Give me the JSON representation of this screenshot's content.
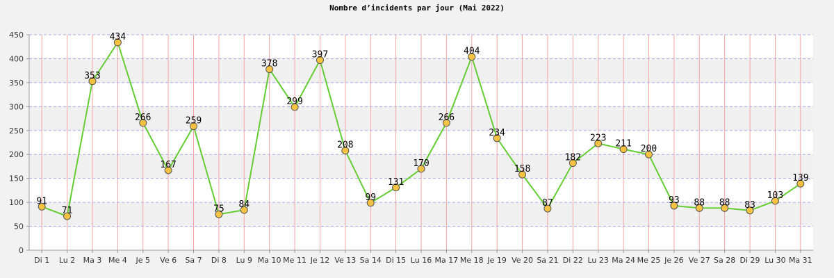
{
  "chart_data": {
    "type": "line",
    "title": "Nombre d’incidents par jour (Mai 2022)",
    "xlabel": "",
    "ylabel": "",
    "categories": [
      "Di 1",
      "Lu 2",
      "Ma 3",
      "Me 4",
      "Je 5",
      "Ve 6",
      "Sa 7",
      "Di 8",
      "Lu 9",
      "Ma 10",
      "Me 11",
      "Je 12",
      "Ve 13",
      "Sa 14",
      "Di 15",
      "Lu 16",
      "Ma 17",
      "Me 18",
      "Je 19",
      "Ve 20",
      "Sa 21",
      "Di 22",
      "Lu 23",
      "Ma 24",
      "Me 25",
      "Je 26",
      "Ve 27",
      "Sa 28",
      "Di 29",
      "Lu 30",
      "Ma 31"
    ],
    "series": [
      {
        "values": [
          91,
          71,
          353,
          434,
          266,
          167,
          259,
          75,
          84,
          378,
          299,
          397,
          208,
          99,
          131,
          170,
          266,
          404,
          234,
          158,
          87,
          182,
          223,
          211,
          200,
          93,
          88,
          88,
          83,
          103,
          139
        ]
      }
    ],
    "ylim": [
      0,
      450
    ],
    "yticks": [
      0,
      50,
      100,
      150,
      200,
      250,
      300,
      350,
      400,
      450
    ],
    "grid": true,
    "data_labels": true,
    "legend": "none",
    "colors": {
      "line": "#66cc33",
      "marker_fill": "#f5c242",
      "marker_stroke": "#555555",
      "vgrid": "#f5a3a3",
      "hgrid": "#aaaaee",
      "band_light": "#ffffff",
      "band_dark": "#f0f0f0"
    }
  }
}
